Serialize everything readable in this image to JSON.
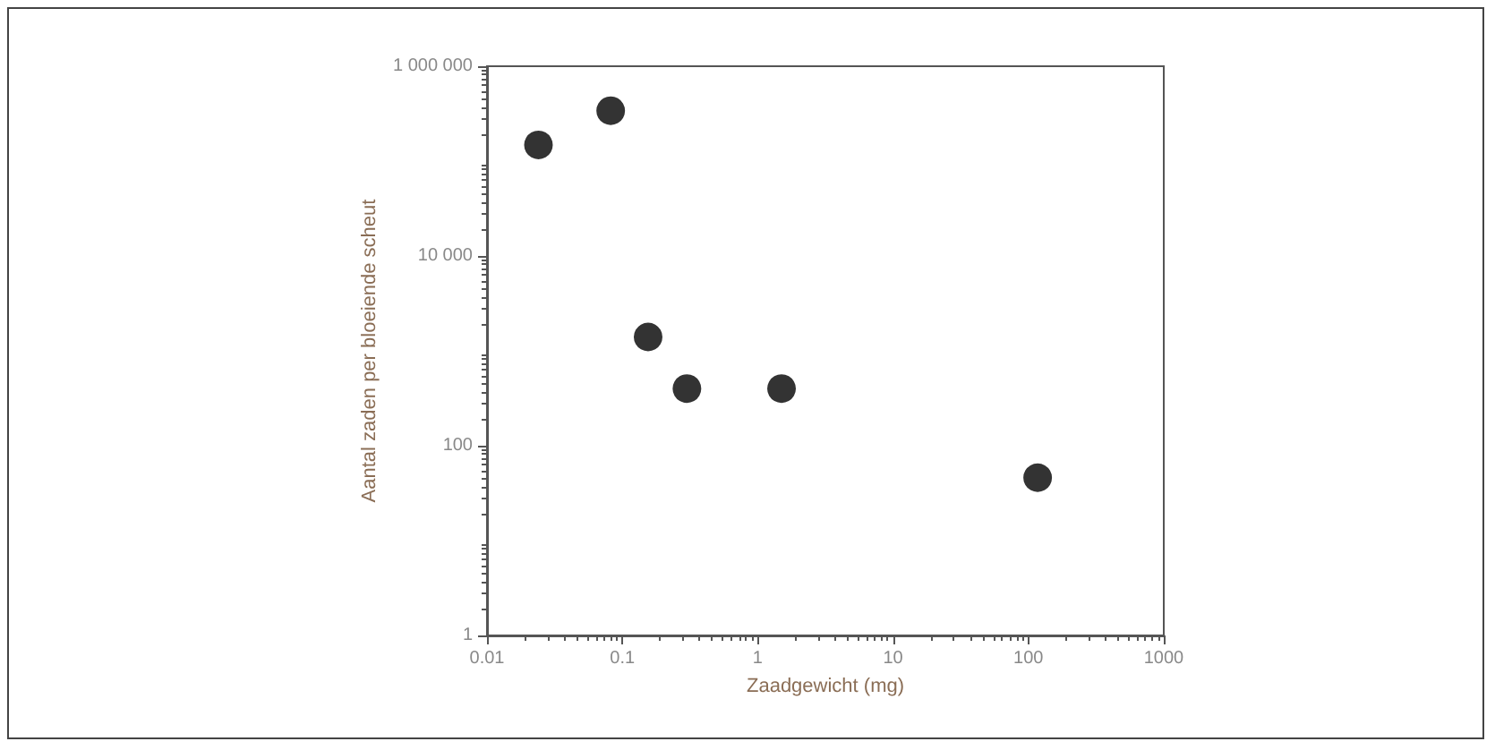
{
  "chart_data": {
    "type": "scatter",
    "xlabel": "Zaadgewicht (mg)",
    "ylabel": "Aantal zaden per bloeiende scheut",
    "x": [
      0.024,
      0.082,
      0.155,
      0.3,
      1.5,
      117
    ],
    "values": [
      148000,
      340000,
      1400,
      400,
      400,
      46
    ],
    "color": "#000000",
    "marker": "circle",
    "log": "xy",
    "grid": false,
    "xlim": [
      0.01,
      1000
    ],
    "xticks": [
      0.01,
      0.1,
      1,
      10,
      100,
      1000
    ],
    "ylim": [
      1,
      1000000
    ],
    "yticks": [
      1,
      100,
      {
        "value": 10000,
        "label": "10 000"
      },
      {
        "value": 1000000,
        "label": "1 000 000"
      }
    ]
  }
}
